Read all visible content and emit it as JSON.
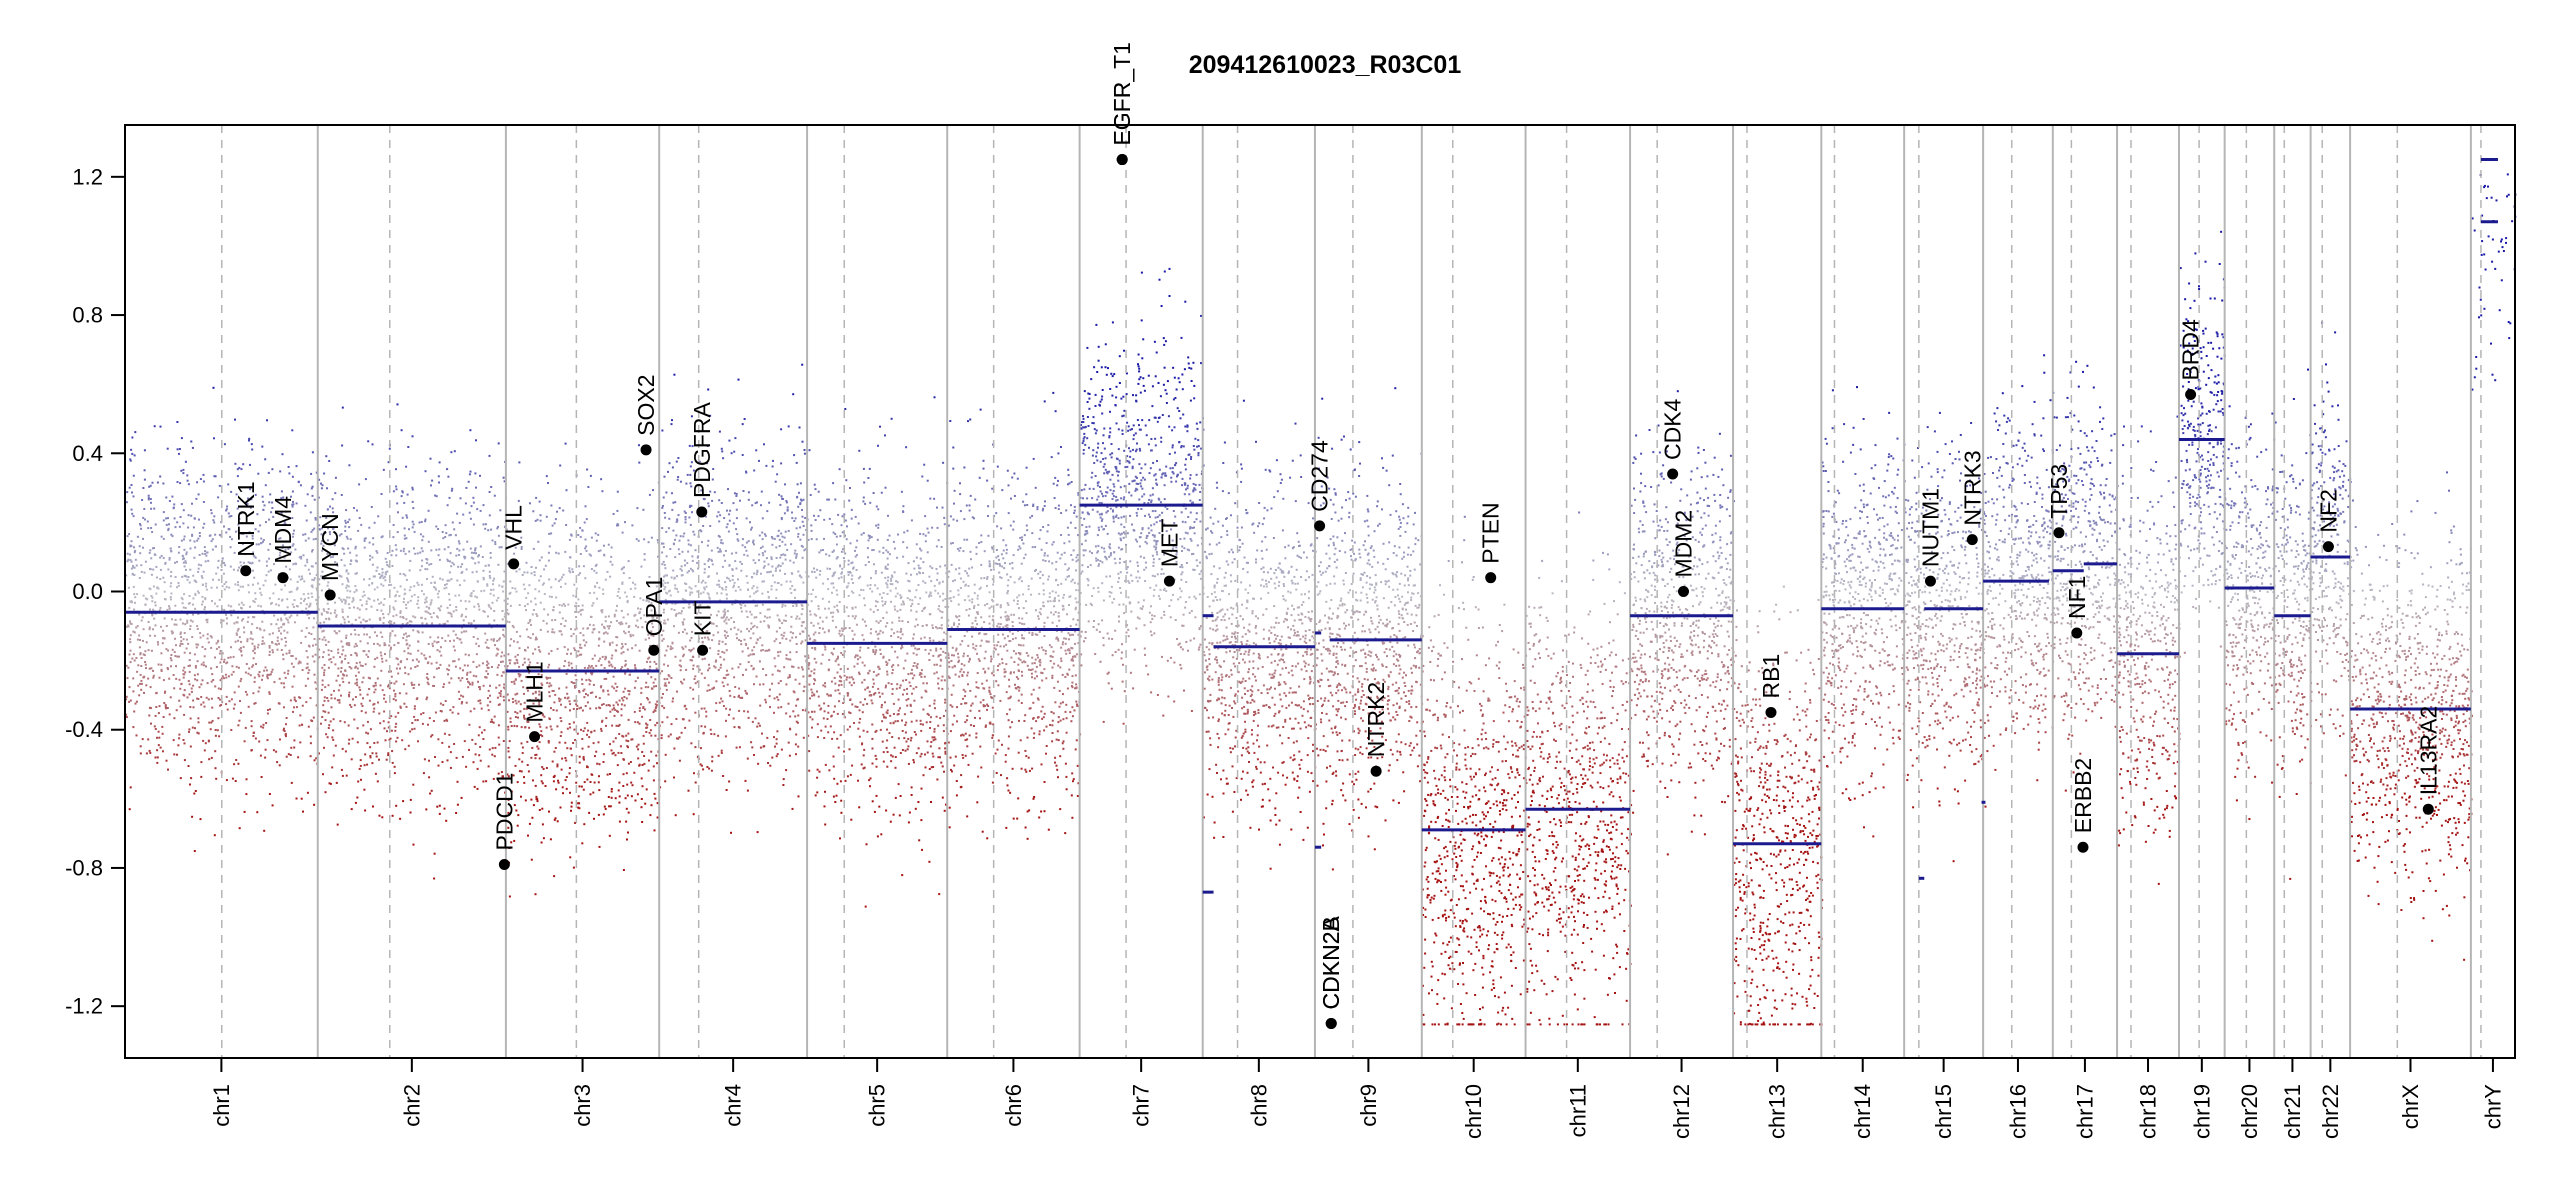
{
  "chart_data": {
    "type": "scatter",
    "title": "209412610023_R03C01",
    "xlabel": "",
    "ylabel": "",
    "ylim": [
      -1.35,
      1.35
    ],
    "y_ticks": [
      -1.2,
      -0.8,
      -0.4,
      0.0,
      0.4,
      0.8,
      1.2
    ],
    "y_tick_labels": [
      "-1.2",
      "-0.8",
      "-0.4",
      "0.0",
      "0.4",
      "0.8",
      "1.2"
    ],
    "grid": false,
    "colors": {
      "gain": "#1a1aa6",
      "loss": "#a51212",
      "neutral": "#b9b9c4",
      "segment": "#1b1b8f",
      "divider": "#b5b5b5",
      "centromere": "#b5b5b5",
      "gene_point": "#000000"
    },
    "chromosomes": [
      {
        "name": "chr1",
        "start": 0,
        "end": 249,
        "centromere": 125
      },
      {
        "name": "chr2",
        "start": 249,
        "end": 492,
        "centromere": 342
      },
      {
        "name": "chr3",
        "start": 492,
        "end": 690,
        "centromere": 583
      },
      {
        "name": "chr4",
        "start": 690,
        "end": 881,
        "centromere": 741
      },
      {
        "name": "chr5",
        "start": 881,
        "end": 1062,
        "centromere": 929
      },
      {
        "name": "chr6",
        "start": 1062,
        "end": 1233,
        "centromere": 1122
      },
      {
        "name": "chr7",
        "start": 1233,
        "end": 1392,
        "centromere": 1293
      },
      {
        "name": "chr8",
        "start": 1392,
        "end": 1537,
        "centromere": 1437
      },
      {
        "name": "chr9",
        "start": 1537,
        "end": 1675,
        "centromere": 1586
      },
      {
        "name": "chr10",
        "start": 1675,
        "end": 1809,
        "centromere": 1715
      },
      {
        "name": "chr11",
        "start": 1809,
        "end": 1944,
        "centromere": 1862
      },
      {
        "name": "chr12",
        "start": 1944,
        "end": 2077,
        "centromere": 1979
      },
      {
        "name": "chr13",
        "start": 2077,
        "end": 2191,
        "centromere": 2095
      },
      {
        "name": "chr14",
        "start": 2191,
        "end": 2298,
        "centromere": 2208
      },
      {
        "name": "chr15",
        "start": 2298,
        "end": 2400,
        "centromere": 2317
      },
      {
        "name": "chr16",
        "start": 2400,
        "end": 2490,
        "centromere": 2437
      },
      {
        "name": "chr17",
        "start": 2490,
        "end": 2573,
        "centromere": 2514
      },
      {
        "name": "chr18",
        "start": 2573,
        "end": 2653,
        "centromere": 2591
      },
      {
        "name": "chr19",
        "start": 2653,
        "end": 2712,
        "centromere": 2679
      },
      {
        "name": "chr20",
        "start": 2712,
        "end": 2776,
        "centromere": 2740
      },
      {
        "name": "chr21",
        "start": 2776,
        "end": 2823,
        "centromere": 2789
      },
      {
        "name": "chr22",
        "start": 2823,
        "end": 2874,
        "centromere": 2838
      },
      {
        "name": "chrX",
        "start": 2874,
        "end": 3030,
        "centromere": 2935
      },
      {
        "name": "chrY",
        "start": 3030,
        "end": 3087,
        "centromere": 3043
      }
    ],
    "segments": [
      {
        "chr": "chr1",
        "x0": 0,
        "x1": 249,
        "value": -0.06
      },
      {
        "chr": "chr2",
        "x0": 249,
        "x1": 492,
        "value": -0.1
      },
      {
        "chr": "chr3",
        "x0": 492,
        "x1": 690,
        "value": -0.23
      },
      {
        "chr": "chr4",
        "x0": 690,
        "x1": 881,
        "value": -0.03
      },
      {
        "chr": "chr5",
        "x0": 881,
        "x1": 1062,
        "value": -0.15
      },
      {
        "chr": "chr6",
        "x0": 1062,
        "x1": 1233,
        "value": -0.11
      },
      {
        "chr": "chr7",
        "x0": 1233,
        "x1": 1392,
        "value": 0.25
      },
      {
        "chr": "chr8",
        "x0": 1392,
        "x1": 1406,
        "value": -0.07
      },
      {
        "chr": "chr8",
        "x0": 1392,
        "x1": 1406,
        "value": -0.87
      },
      {
        "chr": "chr8",
        "x0": 1406,
        "x1": 1537,
        "value": -0.16
      },
      {
        "chr": "chr9",
        "x0": 1537,
        "x1": 1545,
        "value": -0.12
      },
      {
        "chr": "chr9",
        "x0": 1537,
        "x1": 1545,
        "value": -0.74
      },
      {
        "chr": "chr9",
        "x0": 1556,
        "x1": 1675,
        "value": -0.14
      },
      {
        "chr": "chr10",
        "x0": 1675,
        "x1": 1809,
        "value": -0.69
      },
      {
        "chr": "chr11",
        "x0": 1809,
        "x1": 1944,
        "value": -0.63
      },
      {
        "chr": "chr12",
        "x0": 1944,
        "x1": 2077,
        "value": -0.07
      },
      {
        "chr": "chr13",
        "x0": 2077,
        "x1": 2191,
        "value": -0.73
      },
      {
        "chr": "chr14",
        "x0": 2191,
        "x1": 2298,
        "value": -0.05
      },
      {
        "chr": "chr15",
        "x0": 2317,
        "x1": 2324,
        "value": -0.83
      },
      {
        "chr": "chr15",
        "x0": 2324,
        "x1": 2400,
        "value": -0.05
      },
      {
        "chr": "chr16",
        "x0": 2400,
        "x1": 2485,
        "value": 0.03
      },
      {
        "chr": "chr16",
        "x0": 2398,
        "x1": 2403,
        "value": -0.61
      },
      {
        "chr": "chr17",
        "x0": 2490,
        "x1": 2530,
        "value": 0.06
      },
      {
        "chr": "chr17",
        "x0": 2530,
        "x1": 2573,
        "value": 0.08
      },
      {
        "chr": "chr18",
        "x0": 2573,
        "x1": 2653,
        "value": -0.18
      },
      {
        "chr": "chr19",
        "x0": 2653,
        "x1": 2712,
        "value": 0.44
      },
      {
        "chr": "chr20",
        "x0": 2712,
        "x1": 2776,
        "value": 0.01
      },
      {
        "chr": "chr21",
        "x0": 2776,
        "x1": 2823,
        "value": -0.07
      },
      {
        "chr": "chr22",
        "x0": 2823,
        "x1": 2874,
        "value": 0.1
      },
      {
        "chr": "chrX",
        "x0": 2874,
        "x1": 3030,
        "value": -0.34
      },
      {
        "chr": "chrY",
        "x0": 3043,
        "x1": 3065,
        "value": 1.25
      },
      {
        "chr": "chrY",
        "x0": 3043,
        "x1": 3065,
        "value": 1.07
      }
    ],
    "genes": [
      {
        "name": "NTRK1",
        "x": 156,
        "value": 0.06
      },
      {
        "name": "MDM4",
        "x": 204,
        "value": 0.04
      },
      {
        "name": "MYCN",
        "x": 265,
        "value": -0.01
      },
      {
        "name": "PDCD1",
        "x": 490,
        "value": -0.79
      },
      {
        "name": "VHL",
        "x": 502,
        "value": 0.08
      },
      {
        "name": "MLH1",
        "x": 529,
        "value": -0.42
      },
      {
        "name": "SOX2",
        "x": 673,
        "value": 0.41
      },
      {
        "name": "OPA1",
        "x": 683,
        "value": -0.17
      },
      {
        "name": "PDGFRA",
        "x": 745,
        "value": 0.23
      },
      {
        "name": "KIT",
        "x": 746,
        "value": -0.17
      },
      {
        "name": "EGFR",
        "x": 1288,
        "value": 1.25
      },
      {
        "name": "EGFR_T1",
        "x": 1288,
        "value": 1.25
      },
      {
        "name": "MET",
        "x": 1349,
        "value": 0.03
      },
      {
        "name": "CD274",
        "x": 1543,
        "value": 0.19
      },
      {
        "name": "CDKN2A",
        "x": 1558,
        "value": -1.25
      },
      {
        "name": "CDKN2B",
        "x": 1558,
        "value": -1.25
      },
      {
        "name": "NTRK2",
        "x": 1616,
        "value": -0.52
      },
      {
        "name": "PTEN",
        "x": 1764,
        "value": 0.04
      },
      {
        "name": "CDK4",
        "x": 1999,
        "value": 0.34
      },
      {
        "name": "MDM2",
        "x": 2013,
        "value": 0.0
      },
      {
        "name": "RB1",
        "x": 2126,
        "value": -0.35
      },
      {
        "name": "NUTM1",
        "x": 2332,
        "value": 0.03
      },
      {
        "name": "NTRK3",
        "x": 2386,
        "value": 0.15
      },
      {
        "name": "TP53",
        "x": 2498,
        "value": 0.17
      },
      {
        "name": "NF1",
        "x": 2521,
        "value": -0.12
      },
      {
        "name": "ERBB2",
        "x": 2529,
        "value": -0.74
      },
      {
        "name": "BRD4",
        "x": 2668,
        "value": 0.57
      },
      {
        "name": "NF2",
        "x": 2846,
        "value": 0.13
      },
      {
        "name": "IL13RA2",
        "x": 2975,
        "value": -0.63
      }
    ],
    "probe_profile": {
      "description_free": true,
      "mean_by_chr": {
        "chr1": -0.06,
        "chr2": -0.1,
        "chr3": -0.23,
        "chr4": -0.03,
        "chr5": -0.15,
        "chr6": -0.11,
        "chr7": 0.25,
        "chr8": -0.16,
        "chr9": -0.14,
        "chr10": -0.69,
        "chr11": -0.63,
        "chr12": -0.07,
        "chr13": -0.73,
        "chr14": -0.05,
        "chr15": -0.05,
        "chr16": 0.03,
        "chr17": 0.07,
        "chr18": -0.18,
        "chr19": 0.44,
        "chr20": 0.01,
        "chr21": -0.07,
        "chr22": 0.1,
        "chrX": -0.34,
        "chrY": 1.1
      }
    }
  }
}
